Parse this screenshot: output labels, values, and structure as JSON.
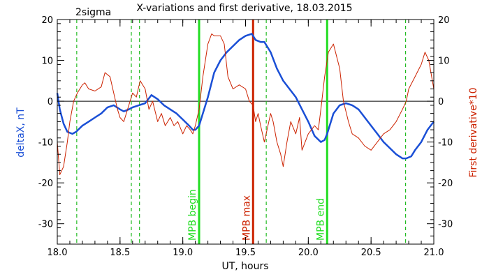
{
  "chart_data": {
    "type": "line",
    "title": "X-variations and first derivative, 18.03.2015",
    "note": "2sigma",
    "xlabel": "UT, hours",
    "ylabel_left": "deltaX, nT",
    "ylabel_right": "First derivative*10",
    "xlim": [
      18.0,
      21.0
    ],
    "ylim": [
      -35,
      20
    ],
    "x_ticks": [
      "18.0",
      "18.5",
      "19.0",
      "19.5",
      "20.0",
      "20.5",
      "21.0"
    ],
    "y_ticks": [
      "-30",
      "-20",
      "-10",
      "0",
      "10",
      "20"
    ],
    "grid": false,
    "zero_line": 0,
    "colors": {
      "deltaX": "#1a4fd6",
      "derivative": "#cc2200",
      "mpb_edge": "#22dd22",
      "mpb_max": "#cc2200",
      "sigma": "#22bb22"
    },
    "series": [
      {
        "id": "deltaX",
        "axis": "left",
        "x": [
          18.0,
          18.02,
          18.05,
          18.08,
          18.12,
          18.15,
          18.2,
          18.25,
          18.3,
          18.35,
          18.4,
          18.45,
          18.5,
          18.53,
          18.57,
          18.6,
          18.65,
          18.7,
          18.75,
          18.8,
          18.85,
          18.9,
          18.95,
          19.0,
          19.05,
          19.08,
          19.1,
          19.13,
          19.15,
          19.2,
          19.25,
          19.3,
          19.35,
          19.4,
          19.45,
          19.5,
          19.55,
          19.58,
          19.62,
          19.65,
          19.7,
          19.75,
          19.8,
          19.85,
          19.9,
          19.95,
          20.0,
          20.05,
          20.1,
          20.13,
          20.15,
          20.2,
          20.25,
          20.3,
          20.35,
          20.4,
          20.45,
          20.5,
          20.55,
          20.6,
          20.65,
          20.7,
          20.75,
          20.78,
          20.82,
          20.85,
          20.9,
          20.95,
          21.0
        ],
        "y": [
          2,
          -2,
          -5.5,
          -7.5,
          -8,
          -7.5,
          -6,
          -5,
          -4,
          -3,
          -1.5,
          -1,
          -2,
          -2.5,
          -2,
          -1.5,
          -1,
          -0.5,
          1.5,
          0.5,
          -1,
          -2,
          -3,
          -4.5,
          -6,
          -7,
          -7,
          -6,
          -4,
          1,
          7,
          10,
          12,
          13.5,
          15,
          16,
          16.5,
          15,
          14.5,
          14.5,
          12,
          8,
          5,
          3,
          1,
          -2,
          -5,
          -8.5,
          -10,
          -9.5,
          -8,
          -3,
          -1,
          -0.5,
          -1,
          -2,
          -4,
          -6,
          -8,
          -10,
          -11.5,
          -13,
          -14,
          -14,
          -13.5,
          -12,
          -10,
          -7,
          -5
        ]
      },
      {
        "id": "derivative",
        "axis": "right",
        "x": [
          18.0,
          18.02,
          18.05,
          18.08,
          18.1,
          18.13,
          18.16,
          18.2,
          18.22,
          18.25,
          18.3,
          18.35,
          18.38,
          18.42,
          18.45,
          18.48,
          18.5,
          18.53,
          18.56,
          18.6,
          18.63,
          18.66,
          18.7,
          18.73,
          18.76,
          18.8,
          18.83,
          18.86,
          18.9,
          18.93,
          18.96,
          19.0,
          19.03,
          19.06,
          19.08,
          19.1,
          19.13,
          19.16,
          19.2,
          19.23,
          19.25,
          19.3,
          19.33,
          19.36,
          19.4,
          19.45,
          19.5,
          19.53,
          19.56,
          19.58,
          19.6,
          19.62,
          19.65,
          19.7,
          19.72,
          19.75,
          19.78,
          19.8,
          19.83,
          19.86,
          19.9,
          19.93,
          19.95,
          20.0,
          20.05,
          20.08,
          20.1,
          20.13,
          20.16,
          20.2,
          20.25,
          20.28,
          20.32,
          20.35,
          20.4,
          20.45,
          20.5,
          20.55,
          20.6,
          20.65,
          20.7,
          20.75,
          20.78,
          20.8,
          20.85,
          20.9,
          20.93,
          20.96,
          21.0
        ],
        "y": [
          -10,
          -18,
          -16,
          -10,
          -5,
          0,
          2,
          4,
          4.5,
          3,
          2.5,
          3.5,
          7,
          6,
          2,
          -2,
          -4,
          -5,
          -2,
          2,
          1,
          5,
          3,
          -2,
          0,
          -5,
          -3,
          -6,
          -4,
          -6,
          -5,
          -8,
          -6,
          -7,
          -8,
          -6,
          -2,
          6,
          14,
          16.5,
          16,
          16,
          14,
          6,
          3,
          4,
          3,
          0,
          -1,
          -5,
          -3,
          -6,
          -10,
          -3,
          -5,
          -10,
          -13,
          -16,
          -10,
          -5,
          -8,
          -4,
          -12,
          -8,
          -6,
          -7,
          -2,
          6,
          12,
          14,
          8,
          0,
          -5,
          -8,
          -9,
          -11,
          -12,
          -10,
          -8,
          -7,
          -5,
          -2,
          0,
          3,
          6,
          9,
          12,
          10,
          3
        ]
      }
    ],
    "vlines": [
      {
        "x": 18.155,
        "style": "dashed",
        "color_key": "sigma"
      },
      {
        "x": 18.59,
        "style": "dashed",
        "color_key": "sigma"
      },
      {
        "x": 18.655,
        "style": "dashed",
        "color_key": "sigma"
      },
      {
        "x": 19.665,
        "style": "dashed",
        "color_key": "sigma"
      },
      {
        "x": 20.775,
        "style": "dashed",
        "color_key": "sigma"
      },
      {
        "x": 19.13,
        "style": "solid",
        "color_key": "mpb_edge",
        "label": "MPB begin"
      },
      {
        "x": 19.56,
        "style": "solid",
        "color_key": "mpb_max",
        "label": "MPB max"
      },
      {
        "x": 20.15,
        "style": "solid",
        "color_key": "mpb_edge",
        "label": "MPB end"
      }
    ]
  }
}
